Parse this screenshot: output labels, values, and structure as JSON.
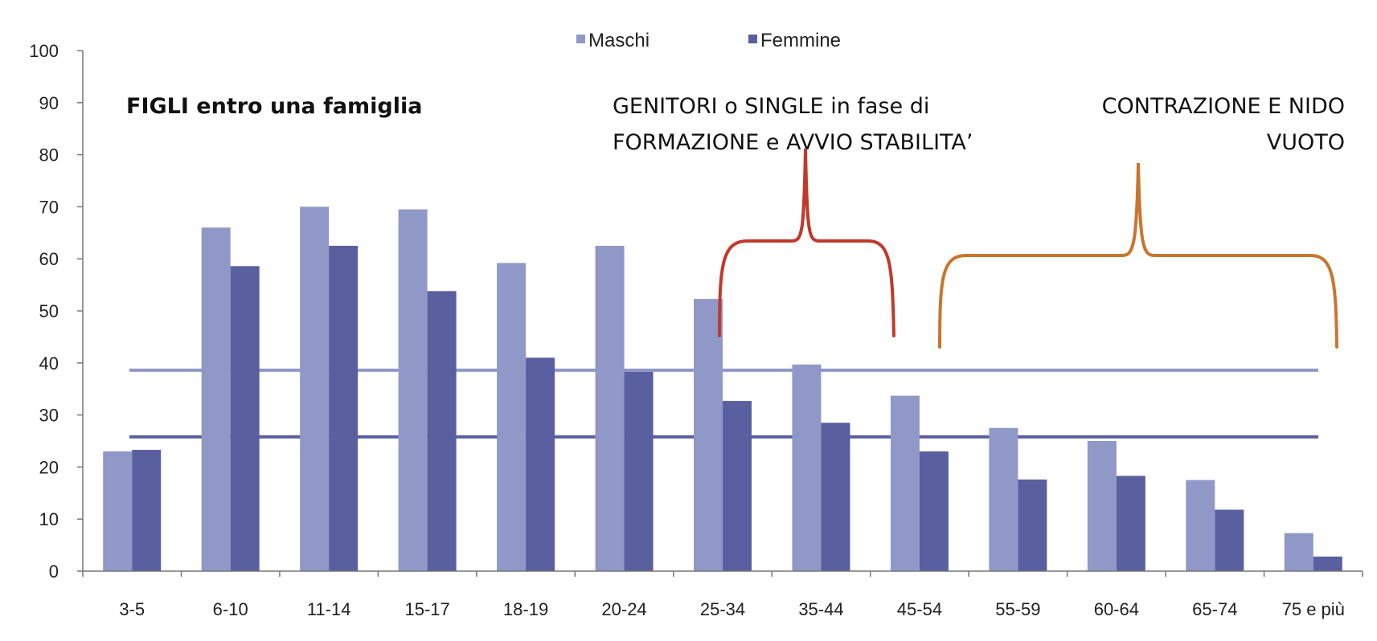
{
  "chart_data": {
    "type": "bar",
    "categories": [
      "3-5",
      "6-10",
      "11-14",
      "15-17",
      "18-19",
      "20-24",
      "25-34",
      "35-44",
      "45-54",
      "55-59",
      "60-64",
      "65-74",
      "75 e più"
    ],
    "series": [
      {
        "name": "Maschi",
        "color": "#9098c8",
        "values": [
          23,
          66,
          70,
          69.5,
          59.2,
          62.5,
          52.3,
          39.7,
          33.7,
          27.5,
          25,
          17.5,
          7.3
        ]
      },
      {
        "name": "Femmine",
        "color": "#5a5f9f",
        "values": [
          23.3,
          58.6,
          62.5,
          53.8,
          41,
          38.3,
          32.7,
          28.5,
          23,
          17.6,
          18.3,
          11.8,
          2.8
        ]
      }
    ],
    "reference_lines": [
      {
        "value": 38.6,
        "color": "#9098c8"
      },
      {
        "value": 25.8,
        "color": "#5a5f9f"
      }
    ],
    "ylim": [
      0,
      100
    ],
    "yticks": [
      "0",
      "10",
      "20",
      "30",
      "40",
      "50",
      "60",
      "70",
      "80",
      "90",
      "100"
    ],
    "grid": false,
    "legend": "top-center",
    "annotations": {
      "figli": "FIGLI entro una famiglia",
      "genitori_line1": "GENITORI o SINGLE in fase di",
      "genitori_line2": "FORMAZIONE e AVVIO STABILITA’",
      "contrazione_line1": "CONTRAZIONE E NIDO",
      "contrazione_line2": "VUOTO"
    },
    "brace_colors": {
      "red": "#c0392b",
      "orange": "#c8762e"
    }
  }
}
